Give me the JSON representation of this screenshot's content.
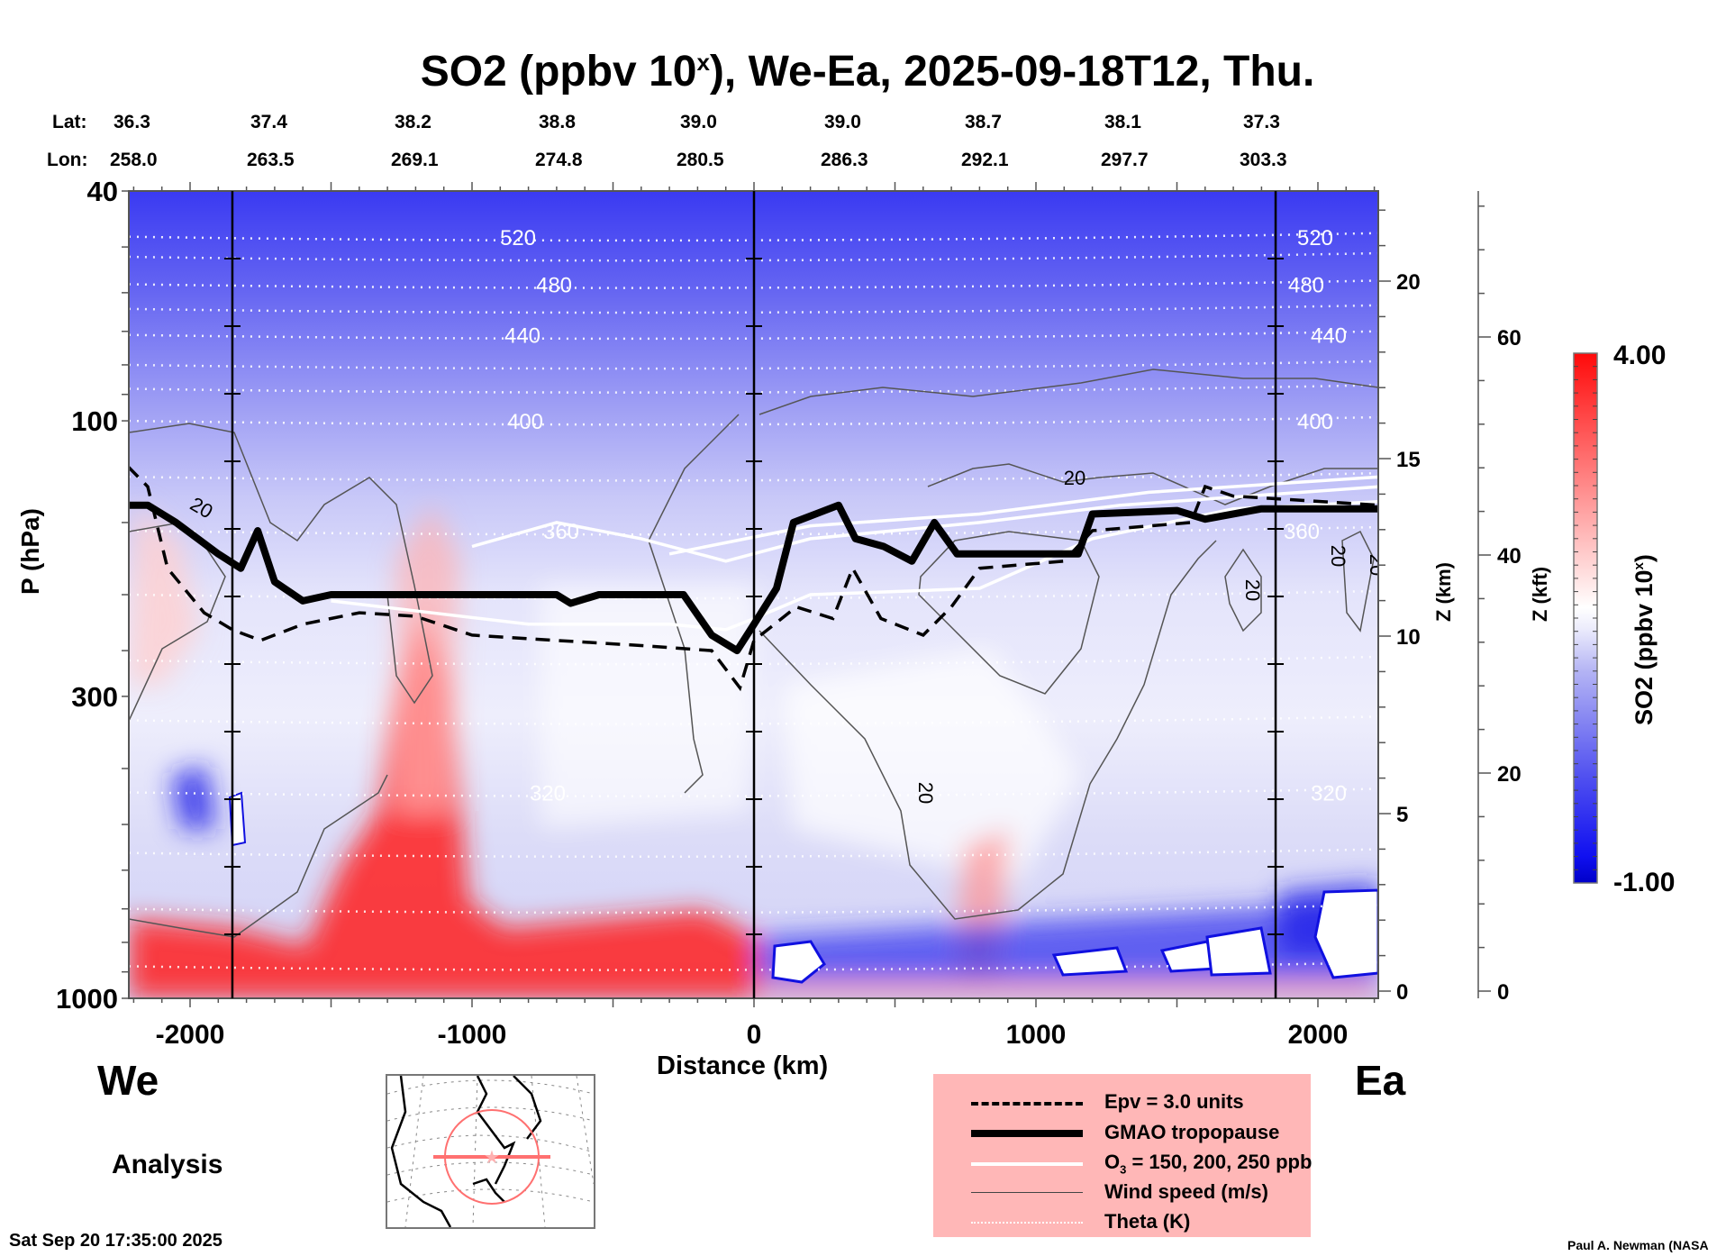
{
  "chart_data": {
    "type": "heatmap",
    "title": "SO2 (ppbv 10",
    "title_sup": "x",
    "title_rest": "), We-Ea, 2025-09-18T12, Thu.",
    "xlabel": "Distance (km)",
    "ylabel": "P (hPa)",
    "ylabel_right": "Z (km)",
    "ylabel_far_right": "Z (kft)",
    "xlim": [
      -2220,
      2220
    ],
    "ylim_hpa": [
      1000,
      40
    ],
    "yscale": "log",
    "x_ticks": [
      {
        "value": -2000,
        "label": "-2000"
      },
      {
        "value": -1000,
        "label": "-1000"
      },
      {
        "value": 0,
        "label": "0"
      },
      {
        "value": 1000,
        "label": "1000"
      },
      {
        "value": 2000,
        "label": "2000"
      }
    ],
    "y_ticks_hpa": [
      {
        "value": 40,
        "label": "40"
      },
      {
        "value": 100,
        "label": "100"
      },
      {
        "value": 300,
        "label": "300"
      },
      {
        "value": 1000,
        "label": "1000"
      }
    ],
    "z_km_ticks": [
      {
        "value": 0,
        "label": "0"
      },
      {
        "value": 5,
        "label": "5"
      },
      {
        "value": 10,
        "label": "10"
      },
      {
        "value": 15,
        "label": "15"
      },
      {
        "value": 20,
        "label": "20"
      }
    ],
    "z_kft_ticks": [
      {
        "value": 0,
        "label": "0"
      },
      {
        "value": 20,
        "label": "20"
      },
      {
        "value": 40,
        "label": "40"
      },
      {
        "value": 60,
        "label": "60"
      }
    ],
    "lat_label": "Lat:",
    "lon_label": "Lon:",
    "lat_values": [
      "36.3",
      "37.4",
      "38.2",
      "38.8",
      "39.0",
      "39.0",
      "38.7",
      "38.1",
      "37.3"
    ],
    "lon_values": [
      "258.0",
      "263.5",
      "269.1",
      "274.8",
      "280.5",
      "286.3",
      "292.1",
      "297.7",
      "303.3"
    ],
    "section_marker_km": [
      -1850,
      0,
      1850
    ],
    "colorbar": {
      "label": "SO2 (ppbv 10",
      "label_sup": "x",
      "label_rest": ")",
      "min": -1.0,
      "max": 4.0,
      "min_label": "-1.00",
      "max_label": "4.00",
      "low_color": "#0a0adc",
      "mid_color": "#ffffff",
      "high_color": "#ff1010",
      "levels": 40
    },
    "theta_contours": [
      {
        "label": "520",
        "hpa": 48
      },
      {
        "label": "480",
        "hpa": 58
      },
      {
        "label": "440",
        "hpa": 71
      },
      {
        "label": "400",
        "hpa": 100
      },
      {
        "label": "360",
        "hpa": 155
      },
      {
        "label": "320",
        "hpa": 440
      }
    ],
    "wind_speed_labels": [
      "20",
      "20",
      "20",
      "20",
      "20",
      "20"
    ],
    "tropopause_hpa": [
      {
        "km": -2220,
        "hpa": 140
      },
      {
        "km": -2150,
        "hpa": 140
      },
      {
        "km": -2050,
        "hpa": 150
      },
      {
        "km": -1900,
        "hpa": 170
      },
      {
        "km": -1820,
        "hpa": 180
      },
      {
        "km": -1760,
        "hpa": 155
      },
      {
        "km": -1700,
        "hpa": 190
      },
      {
        "km": -1600,
        "hpa": 205
      },
      {
        "km": -1500,
        "hpa": 200
      },
      {
        "km": -1000,
        "hpa": 200
      },
      {
        "km": -700,
        "hpa": 200
      },
      {
        "km": -650,
        "hpa": 207
      },
      {
        "km": -550,
        "hpa": 200
      },
      {
        "km": -250,
        "hpa": 200
      },
      {
        "km": -150,
        "hpa": 235
      },
      {
        "km": -60,
        "hpa": 250
      },
      {
        "km": 0,
        "hpa": 225
      },
      {
        "km": 80,
        "hpa": 195
      },
      {
        "km": 140,
        "hpa": 150
      },
      {
        "km": 300,
        "hpa": 140
      },
      {
        "km": 360,
        "hpa": 160
      },
      {
        "km": 460,
        "hpa": 165
      },
      {
        "km": 560,
        "hpa": 175
      },
      {
        "km": 640,
        "hpa": 150
      },
      {
        "km": 720,
        "hpa": 170
      },
      {
        "km": 1150,
        "hpa": 170
      },
      {
        "km": 1200,
        "hpa": 145
      },
      {
        "km": 1500,
        "hpa": 143
      },
      {
        "km": 1600,
        "hpa": 148
      },
      {
        "km": 1800,
        "hpa": 142
      },
      {
        "km": 2220,
        "hpa": 142
      }
    ],
    "epv_hpa": [
      {
        "km": -2220,
        "hpa": 120
      },
      {
        "km": -2150,
        "hpa": 130
      },
      {
        "km": -2080,
        "hpa": 180
      },
      {
        "km": -1950,
        "hpa": 215
      },
      {
        "km": -1850,
        "hpa": 230
      },
      {
        "km": -1750,
        "hpa": 240
      },
      {
        "km": -1600,
        "hpa": 225
      },
      {
        "km": -1400,
        "hpa": 215
      },
      {
        "km": -1200,
        "hpa": 218
      },
      {
        "km": -1000,
        "hpa": 235
      },
      {
        "km": -700,
        "hpa": 240
      },
      {
        "km": -400,
        "hpa": 245
      },
      {
        "km": -150,
        "hpa": 250
      },
      {
        "km": -50,
        "hpa": 290
      },
      {
        "km": 0,
        "hpa": 240
      },
      {
        "km": 150,
        "hpa": 210
      },
      {
        "km": 280,
        "hpa": 220
      },
      {
        "km": 350,
        "hpa": 180
      },
      {
        "km": 450,
        "hpa": 220
      },
      {
        "km": 600,
        "hpa": 235
      },
      {
        "km": 700,
        "hpa": 210
      },
      {
        "km": 800,
        "hpa": 180
      },
      {
        "km": 1100,
        "hpa": 175
      },
      {
        "km": 1200,
        "hpa": 155
      },
      {
        "km": 1550,
        "hpa": 150
      },
      {
        "km": 1600,
        "hpa": 130
      },
      {
        "km": 1700,
        "hpa": 135
      },
      {
        "km": 2220,
        "hpa": 140
      }
    ],
    "ozone_hpa": [
      [
        {
          "km": -1500,
          "hpa": 205
        },
        {
          "km": -800,
          "hpa": 225
        },
        {
          "km": -300,
          "hpa": 225
        },
        {
          "km": -100,
          "hpa": 230
        },
        {
          "km": 0,
          "hpa": 220
        },
        {
          "km": 200,
          "hpa": 200
        },
        {
          "km": 800,
          "hpa": 195
        },
        {
          "km": 1200,
          "hpa": 160
        },
        {
          "km": 1700,
          "hpa": 142
        },
        {
          "km": 2220,
          "hpa": 138
        }
      ],
      [
        {
          "km": -1000,
          "hpa": 165
        },
        {
          "km": -700,
          "hpa": 150
        },
        {
          "km": -400,
          "hpa": 160
        },
        {
          "km": -100,
          "hpa": 175
        },
        {
          "km": 200,
          "hpa": 160
        },
        {
          "km": 800,
          "hpa": 150
        },
        {
          "km": 1300,
          "hpa": 140
        },
        {
          "km": 2220,
          "hpa": 130
        }
      ],
      [
        {
          "km": -300,
          "hpa": 170
        },
        {
          "km": 200,
          "hpa": 152
        },
        {
          "km": 800,
          "hpa": 145
        },
        {
          "km": 1400,
          "hpa": 133
        },
        {
          "km": 2220,
          "hpa": 125
        }
      ]
    ],
    "legend": {
      "position": "bottom-center",
      "entries": [
        {
          "name": "Epv = 3.0 units",
          "style": "dashed-black"
        },
        {
          "name": "GMAO tropopause",
          "style": "thick-black"
        },
        {
          "name": "O3 = 150, 200, 250 ppb",
          "style": "white"
        },
        {
          "name": "Wind speed (m/s)",
          "style": "thin-gray"
        },
        {
          "name": "Theta (K)",
          "style": "dotted-white"
        }
      ]
    }
  },
  "labels": {
    "west": "We",
    "east": "Ea",
    "analysis": "Analysis",
    "timestamp": "Sat Sep 20 17:35:00 2025",
    "credit": "Paul A. Newman (NASA"
  },
  "legend_text": {
    "epv": "Epv = 3.0 units",
    "trop": "GMAO tropopause",
    "o3_prefix": "O",
    "o3_sub": "3",
    "o3_rest": " = 150, 200, 250 ppb",
    "wind": "Wind speed (m/s)",
    "theta": "Theta (K)"
  },
  "colors": {
    "legend_bg": "#ffb7b7",
    "map_track": "#ff7070"
  }
}
